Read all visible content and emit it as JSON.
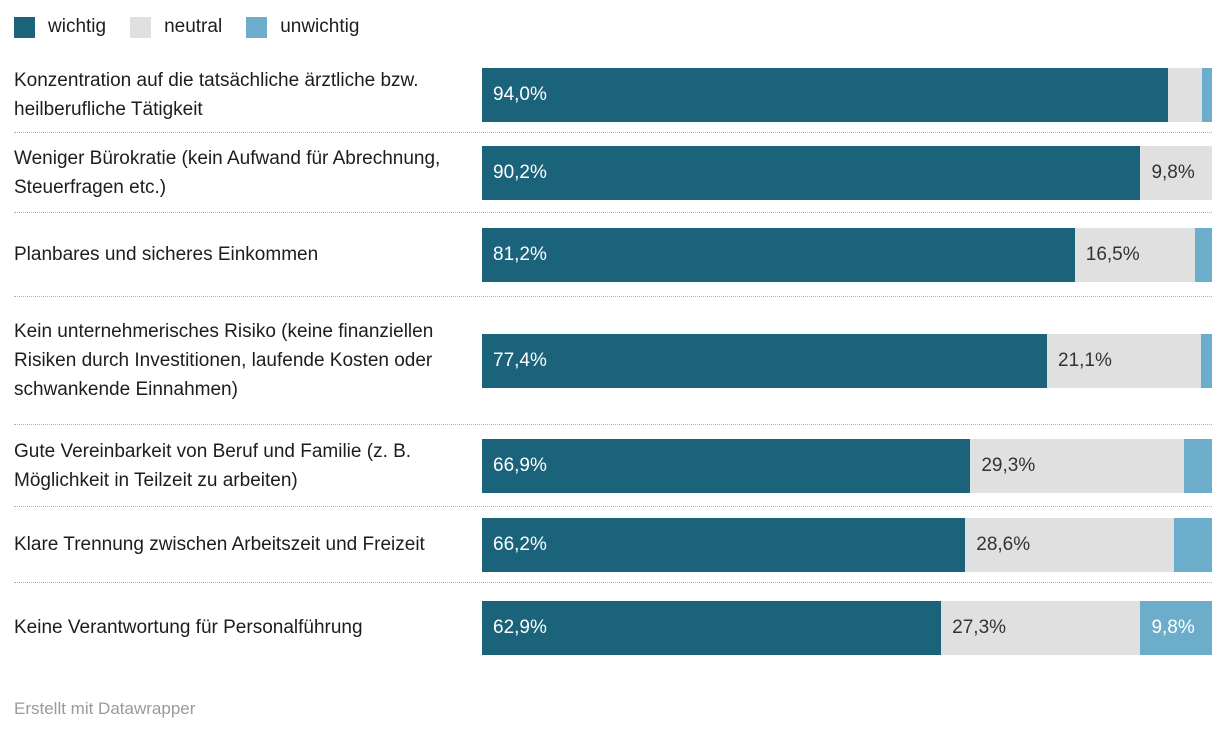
{
  "legend": {
    "items": [
      {
        "label": "wichtig",
        "color": "#1a637a"
      },
      {
        "label": "neutral",
        "color": "#e0e0e0"
      },
      {
        "label": "unwichtig",
        "color": "#6cadcb"
      }
    ]
  },
  "footer": {
    "credit": "Erstellt mit Datawrapper"
  },
  "chart_data": {
    "type": "bar",
    "subtype": "horizontal-stacked-percentage",
    "title": "",
    "xlabel": "",
    "ylabel": "",
    "xlim": [
      0,
      100
    ],
    "grid": false,
    "legend_position": "top-left",
    "series_names": [
      "wichtig",
      "neutral",
      "unwichtig"
    ],
    "series_colors": [
      "#1a637a",
      "#e0e0e0",
      "#6cadcb"
    ],
    "categories": [
      "Konzentration auf die tatsächliche ärztliche bzw. heilberufliche Tätigkeit",
      "Weniger Bürokratie (kein Aufwand für Abrechnung, Steuerfragen etc.)",
      "Planbares und sicheres Einkommen",
      "Kein unternehmerisches Risiko (keine finanziellen Risiken durch Investitionen, laufende Kosten oder schwankende Einnahmen)",
      "Gute Vereinbarkeit von Beruf und Familie (z. B. Möglichkeit in Teilzeit zu arbeiten)",
      "Klare Trennung zwischen Arbeitszeit und Freizeit",
      "Keine Verantwortung für Personalführung"
    ],
    "series": [
      {
        "name": "wichtig",
        "values": [
          94.0,
          90.2,
          81.2,
          77.4,
          66.9,
          66.2,
          62.9
        ]
      },
      {
        "name": "neutral",
        "values": [
          4.7,
          9.8,
          16.5,
          21.1,
          29.3,
          28.6,
          27.3
        ]
      },
      {
        "name": "unwichtig",
        "values": [
          1.3,
          0.0,
          2.3,
          1.5,
          3.8,
          5.2,
          9.8
        ]
      }
    ],
    "value_labels": [
      [
        "94,0%",
        "",
        ""
      ],
      [
        "90,2%",
        "9,8%",
        ""
      ],
      [
        "81,2%",
        "16,5%",
        ""
      ],
      [
        "77,4%",
        "21,1%",
        ""
      ],
      [
        "66,9%",
        "29,3%",
        ""
      ],
      [
        "66,2%",
        "28,6%",
        ""
      ],
      [
        "62,9%",
        "27,3%",
        "9,8%"
      ]
    ]
  }
}
